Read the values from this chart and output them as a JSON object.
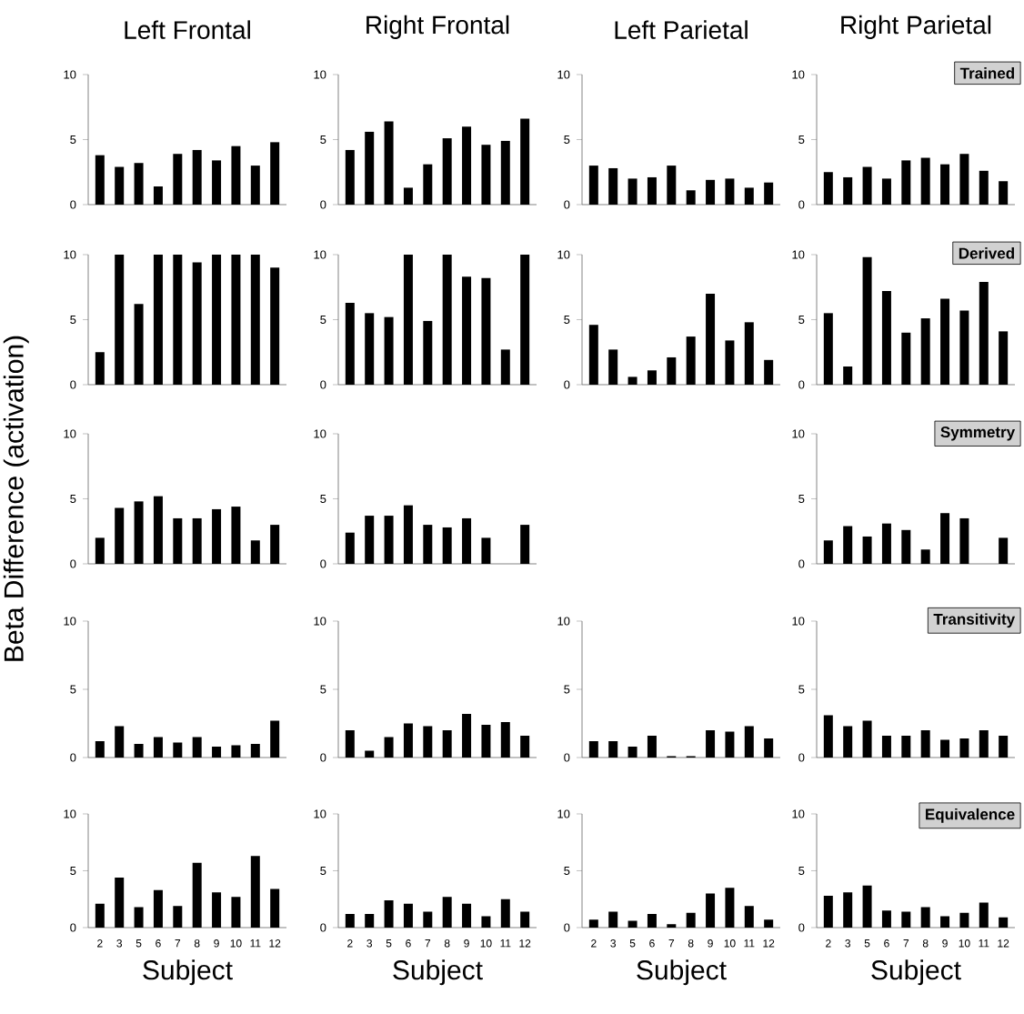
{
  "chart_data": [
    {
      "type": "bar",
      "title": "Left Frontal",
      "categories": [
        "2",
        "3",
        "5",
        "6",
        "7",
        "8",
        "9",
        "10",
        "11",
        "12"
      ],
      "values": [
        3.8,
        2.9,
        3.2,
        1.4,
        3.9,
        4.2,
        3.4,
        4.5,
        3.0,
        4.8
      ],
      "color": "#000000",
      "ylim": [
        0,
        10
      ],
      "yticks": [
        0,
        5,
        10
      ],
      "tick_labels": "y"
    },
    {
      "type": "bar",
      "title": "Right Frontal",
      "categories": [
        "2",
        "3",
        "5",
        "6",
        "7",
        "8",
        "9",
        "10",
        "11",
        "12"
      ],
      "values": [
        4.2,
        5.6,
        6.4,
        1.3,
        3.1,
        5.1,
        6.0,
        4.6,
        4.9,
        6.6
      ],
      "color": "#000000",
      "ylim": [
        0,
        10
      ],
      "yticks": [
        0,
        5,
        10
      ],
      "tick_labels": "y"
    },
    {
      "type": "bar",
      "title": "Left Parietal",
      "categories": [
        "2",
        "3",
        "5",
        "6",
        "7",
        "8",
        "9",
        "10",
        "11",
        "12"
      ],
      "values": [
        3.0,
        2.8,
        2.0,
        2.1,
        3.0,
        1.1,
        1.9,
        2.0,
        1.3,
        1.7
      ],
      "color": "#000000",
      "ylim": [
        0,
        10
      ],
      "yticks": [
        0,
        5,
        10
      ],
      "tick_labels": "y"
    },
    {
      "type": "bar",
      "title": "Right Parietal",
      "annotations": [
        "Trained"
      ],
      "categories": [
        "2",
        "3",
        "5",
        "6",
        "7",
        "8",
        "9",
        "10",
        "11",
        "12"
      ],
      "values": [
        2.5,
        2.1,
        2.9,
        2.0,
        3.4,
        3.6,
        3.1,
        3.9,
        2.6,
        1.8
      ],
      "color": "#000000",
      "ylim": [
        0,
        10
      ],
      "yticks": [
        0,
        5,
        10
      ],
      "tick_labels": "y"
    },
    {
      "type": "bar",
      "categories": [
        "2",
        "3",
        "5",
        "6",
        "7",
        "8",
        "9",
        "10",
        "11",
        "12"
      ],
      "values": [
        2.5,
        10,
        6.2,
        10,
        10,
        9.4,
        10,
        10,
        10,
        9.0
      ],
      "color": "#000000",
      "ylim": [
        0,
        10
      ],
      "yticks": [
        0,
        5,
        10
      ],
      "tick_labels": "y"
    },
    {
      "type": "bar",
      "categories": [
        "2",
        "3",
        "5",
        "6",
        "7",
        "8",
        "9",
        "10",
        "11",
        "12"
      ],
      "values": [
        6.3,
        5.5,
        5.2,
        10,
        4.9,
        10,
        8.3,
        8.2,
        2.7,
        10
      ],
      "color": "#000000",
      "ylim": [
        0,
        10
      ],
      "yticks": [
        0,
        5,
        10
      ],
      "tick_labels": "y"
    },
    {
      "type": "bar",
      "categories": [
        "2",
        "3",
        "5",
        "6",
        "7",
        "8",
        "9",
        "10",
        "11",
        "12"
      ],
      "values": [
        4.6,
        2.7,
        0.6,
        1.1,
        2.1,
        3.7,
        7.0,
        3.4,
        4.8,
        1.9
      ],
      "color": "#000000",
      "ylim": [
        0,
        10
      ],
      "yticks": [
        0,
        5,
        10
      ],
      "tick_labels": "y"
    },
    {
      "type": "bar",
      "annotations": [
        "Derived"
      ],
      "categories": [
        "2",
        "3",
        "5",
        "6",
        "7",
        "8",
        "9",
        "10",
        "11",
        "12"
      ],
      "values": [
        5.5,
        1.4,
        9.8,
        7.2,
        4.0,
        5.1,
        6.6,
        5.7,
        7.9,
        4.1
      ],
      "color": "#000000",
      "ylim": [
        0,
        10
      ],
      "yticks": [
        0,
        5,
        10
      ],
      "tick_labels": "y"
    },
    {
      "type": "bar",
      "ylabel": "Beta Difference (activation)",
      "categories": [
        "2",
        "3",
        "5",
        "6",
        "7",
        "8",
        "9",
        "10",
        "11",
        "12"
      ],
      "values": [
        2.0,
        4.3,
        4.8,
        5.2,
        3.5,
        3.5,
        4.2,
        4.4,
        1.8,
        3.0
      ],
      "color": "#000000",
      "ylim": [
        0,
        10
      ],
      "yticks": [
        0,
        5,
        10
      ],
      "tick_labels": "y"
    },
    {
      "type": "bar",
      "categories": [
        "2",
        "3",
        "5",
        "6",
        "7",
        "8",
        "9",
        "10",
        "11",
        "12"
      ],
      "values": [
        2.4,
        3.7,
        3.7,
        4.5,
        3.0,
        2.8,
        3.5,
        2.0,
        null,
        3.0
      ],
      "color": "#000000",
      "ylim": [
        0,
        10
      ],
      "yticks": [
        0,
        5,
        10
      ],
      "tick_labels": "y"
    },
    {
      "type": "bar",
      "annotations": [
        "Symmetry"
      ],
      "categories": [
        "2",
        "3",
        "5",
        "6",
        "7",
        "8",
        "9",
        "10",
        "11",
        "12"
      ],
      "values": [
        1.8,
        2.9,
        2.1,
        3.1,
        2.6,
        1.1,
        3.9,
        3.5,
        null,
        2.0
      ],
      "color": "#000000",
      "ylim": [
        0,
        10
      ],
      "yticks": [
        0,
        5,
        10
      ],
      "tick_labels": "y"
    },
    {
      "type": "bar",
      "categories": [
        "2",
        "3",
        "5",
        "6",
        "7",
        "8",
        "9",
        "10",
        "11",
        "12"
      ],
      "values": [
        1.2,
        2.3,
        1.0,
        1.5,
        1.1,
        1.5,
        0.8,
        0.9,
        1.0,
        2.7
      ],
      "color": "#000000",
      "ylim": [
        0,
        10
      ],
      "yticks": [
        0,
        5,
        10
      ],
      "tick_labels": "y"
    },
    {
      "type": "bar",
      "categories": [
        "2",
        "3",
        "5",
        "6",
        "7",
        "8",
        "9",
        "10",
        "11",
        "12"
      ],
      "values": [
        2.0,
        0.5,
        1.5,
        2.5,
        2.3,
        2.0,
        3.2,
        2.4,
        2.6,
        1.6
      ],
      "color": "#000000",
      "ylim": [
        0,
        10
      ],
      "yticks": [
        0,
        5,
        10
      ],
      "tick_labels": "y"
    },
    {
      "type": "bar",
      "categories": [
        "2",
        "3",
        "5",
        "6",
        "7",
        "8",
        "9",
        "10",
        "11",
        "12"
      ],
      "values": [
        1.2,
        1.2,
        0.8,
        1.6,
        0.1,
        0.1,
        2.0,
        1.9,
        2.3,
        1.4
      ],
      "color": "#000000",
      "ylim": [
        0,
        10
      ],
      "yticks": [
        0,
        5,
        10
      ],
      "tick_labels": "y"
    },
    {
      "type": "bar",
      "annotations": [
        "Transitivity"
      ],
      "categories": [
        "2",
        "3",
        "5",
        "6",
        "7",
        "8",
        "9",
        "10",
        "11",
        "12"
      ],
      "values": [
        3.1,
        2.3,
        2.7,
        1.6,
        1.6,
        2.0,
        1.3,
        1.4,
        2.0,
        1.6
      ],
      "color": "#000000",
      "ylim": [
        0,
        10
      ],
      "yticks": [
        0,
        5,
        10
      ],
      "tick_labels": "y"
    },
    {
      "type": "bar",
      "xlabel": "Subject",
      "categories": [
        "2",
        "3",
        "5",
        "6",
        "7",
        "8",
        "9",
        "10",
        "11",
        "12"
      ],
      "values": [
        2.1,
        4.4,
        1.8,
        3.3,
        1.9,
        5.7,
        3.1,
        2.7,
        6.3,
        3.4
      ],
      "color": "#000000",
      "ylim": [
        0,
        10
      ],
      "yticks": [
        0,
        5,
        10
      ]
    },
    {
      "type": "bar",
      "xlabel": "Subject",
      "categories": [
        "2",
        "3",
        "5",
        "6",
        "7",
        "8",
        "9",
        "10",
        "11",
        "12"
      ],
      "values": [
        1.2,
        1.2,
        2.4,
        2.1,
        1.4,
        2.7,
        2.1,
        1.0,
        2.5,
        1.4
      ],
      "color": "#000000",
      "ylim": [
        0,
        10
      ],
      "yticks": [
        0,
        5,
        10
      ]
    },
    {
      "type": "bar",
      "xlabel": "Subject",
      "categories": [
        "2",
        "3",
        "5",
        "6",
        "7",
        "8",
        "9",
        "10",
        "11",
        "12"
      ],
      "values": [
        0.7,
        1.4,
        0.6,
        1.2,
        0.3,
        1.3,
        3.0,
        3.5,
        1.9,
        0.7
      ],
      "color": "#000000",
      "ylim": [
        0,
        10
      ],
      "yticks": [
        0,
        5,
        10
      ]
    },
    {
      "type": "bar",
      "xlabel": "Subject",
      "annotations": [
        "Equivalence"
      ],
      "categories": [
        "2",
        "3",
        "5",
        "6",
        "7",
        "8",
        "9",
        "10",
        "11",
        "12"
      ],
      "values": [
        2.8,
        3.1,
        3.7,
        1.5,
        1.4,
        1.8,
        1.0,
        1.3,
        2.2,
        0.9
      ],
      "color": "#000000",
      "ylim": [
        0,
        10
      ],
      "yticks": [
        0,
        5,
        10
      ]
    }
  ]
}
